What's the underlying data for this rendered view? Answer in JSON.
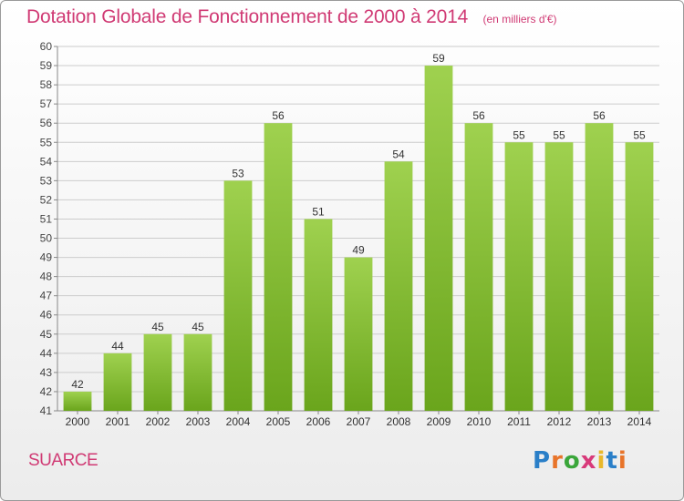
{
  "header": {
    "title": "Dotation Globale de Fonctionnement de 2000 à 2014",
    "subtitle": "(en milliers d'€)"
  },
  "footer": {
    "commune": "SUARCE",
    "logo": {
      "text": "Proxiti",
      "letter_colors": [
        "#2a7fc8",
        "#e8742a",
        "#3aa63a",
        "#d83a7a",
        "#e8b82a",
        "#2a7fc8",
        "#e8742a"
      ]
    }
  },
  "colors": {
    "title": "#d03a74",
    "bar_light": "#9fd14f",
    "bar_dark": "#6aa51c",
    "grid": "#cccccc"
  },
  "chart_data": {
    "type": "bar",
    "title": "Dotation Globale de Fonctionnement de 2000 à 2014",
    "subtitle": "(en milliers d'€)",
    "categories": [
      "2000",
      "2001",
      "2002",
      "2003",
      "2004",
      "2005",
      "2006",
      "2007",
      "2008",
      "2009",
      "2010",
      "2011",
      "2012",
      "2013",
      "2014"
    ],
    "values": [
      42,
      44,
      45,
      45,
      53,
      56,
      51,
      49,
      54,
      59,
      56,
      55,
      55,
      56,
      55
    ],
    "xlabel": "",
    "ylabel": "",
    "ylim": [
      41,
      60
    ],
    "yticks": [
      41,
      42,
      43,
      44,
      45,
      46,
      47,
      48,
      49,
      50,
      51,
      52,
      53,
      54,
      55,
      56,
      57,
      58,
      59,
      60
    ],
    "grid": true,
    "data_labels": true,
    "legend": "none"
  }
}
